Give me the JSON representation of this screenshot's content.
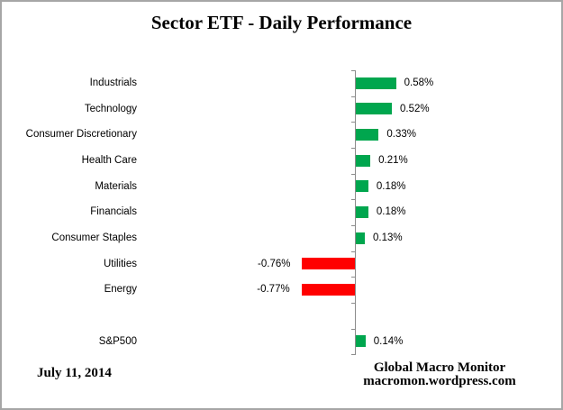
{
  "title": "Sector ETF - Daily Performance",
  "footer": {
    "date": "July 11, 2014",
    "source_line1": "Global Macro Monitor",
    "source_line2": "macromon.wordpress.com"
  },
  "colors": {
    "positive_bar": "#00a64e",
    "negative_bar": "#ff0000",
    "axis": "#8c8c8c",
    "border": "#a6a6a6",
    "text": "#000000"
  },
  "chart_data": {
    "type": "bar",
    "orientation": "horizontal",
    "title": "Sector ETF - Daily Performance",
    "xlabel": "",
    "ylabel": "",
    "unit": "percent",
    "grid": false,
    "value_axis_labels_visible": false,
    "xlim": [
      -1.0,
      3.0
    ],
    "categories": [
      "Industrials",
      "Technology",
      "Consumer Discretionary",
      "Health Care",
      "Materials",
      "Financials",
      "Consumer Staples",
      "Utilities",
      "Energy",
      "",
      "S&P500"
    ],
    "values": [
      0.58,
      0.52,
      0.33,
      0.21,
      0.18,
      0.18,
      0.13,
      -0.76,
      -0.77,
      null,
      0.14
    ],
    "data_labels": [
      "0.58%",
      "0.52%",
      "0.33%",
      "0.21%",
      "0.18%",
      "0.18%",
      "0.13%",
      "-0.76%",
      "-0.77%",
      "",
      "0.14%"
    ]
  }
}
